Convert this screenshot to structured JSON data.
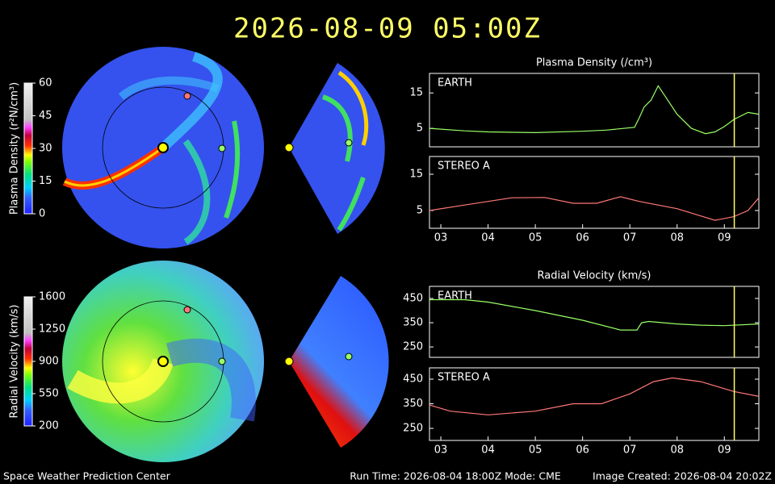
{
  "header": {
    "title": "2026-08-09  05:00Z"
  },
  "footer": {
    "left": "Space Weather Prediction Center",
    "center": "Run Time: 2026-08-04 18:00Z  Mode: CME",
    "right": "Image Created: 2026-08-04 20:02Z"
  },
  "chart_data": [
    {
      "type": "line",
      "title": "Plasma Density (/cm³)",
      "x": [
        2.76,
        3.5,
        4,
        5,
        6,
        6.5,
        7.1,
        7.2,
        7.3,
        7.45,
        7.6,
        7.75,
        8,
        8.3,
        8.6,
        8.8,
        9.0,
        9.2,
        9.5,
        9.73
      ],
      "series": [
        {
          "name": "EARTH",
          "color": "#99ff66",
          "values": [
            5.0,
            4.3,
            4.0,
            3.8,
            4.2,
            4.5,
            5.3,
            8,
            11,
            13,
            17,
            14,
            9,
            5,
            3.5,
            4,
            5.5,
            7.5,
            9.5,
            9
          ]
        }
      ],
      "xlim": [
        2.76,
        9.73
      ],
      "ylim": [
        -0.2,
        20.5
      ],
      "yticks": [
        5,
        15
      ],
      "marker_x": 9.21,
      "marker_color": "#ffff66"
    },
    {
      "type": "line",
      "x": [
        2.76,
        3.5,
        4.5,
        5.2,
        5.8,
        6.3,
        6.8,
        7.2,
        8,
        8.5,
        8.8,
        9.2,
        9.5,
        9.73
      ],
      "series": [
        {
          "name": "STEREO A",
          "color": "#ff7777",
          "values": [
            5,
            6.5,
            8.5,
            8.6,
            7,
            7,
            8.8,
            7.5,
            5.5,
            3.5,
            2.3,
            3.3,
            5,
            8.5
          ]
        }
      ],
      "xlim": [
        2.76,
        9.73
      ],
      "ylim": [
        0.1,
        19.9
      ],
      "yticks": [
        5,
        15
      ],
      "xticks": [
        {
          "value": 3,
          "label": "03"
        },
        {
          "value": 4,
          "label": "04"
        },
        {
          "value": 5,
          "label": "05"
        },
        {
          "value": 6,
          "label": "06"
        },
        {
          "value": 7,
          "label": "07"
        },
        {
          "value": 8,
          "label": "08"
        },
        {
          "value": 9,
          "label": "09"
        }
      ],
      "marker_x": 9.21,
      "marker_color": "#ffff66"
    },
    {
      "type": "line",
      "title": "Radial Velocity (km/s)",
      "x": [
        2.76,
        3.5,
        4,
        5,
        6,
        6.8,
        7.15,
        7.25,
        7.4,
        8,
        8.5,
        9,
        9.73
      ],
      "series": [
        {
          "name": "EARTH",
          "color": "#99ff66",
          "values": [
            445,
            445,
            435,
            400,
            360,
            320,
            320,
            350,
            355,
            345,
            340,
            338,
            345
          ]
        }
      ],
      "xlim": [
        2.76,
        9.73
      ],
      "ylim": [
        207,
        500
      ],
      "yticks": [
        250,
        350,
        450
      ],
      "marker_x": 9.21,
      "marker_color": "#ffff66"
    },
    {
      "type": "line",
      "x": [
        2.76,
        3.2,
        4,
        5,
        5.8,
        6.4,
        7,
        7.5,
        7.9,
        8.5,
        9.2,
        9.73
      ],
      "series": [
        {
          "name": "STEREO A",
          "color": "#ff7777",
          "values": [
            345,
            320,
            305,
            320,
            350,
            350,
            390,
            440,
            455,
            440,
            400,
            380
          ]
        }
      ],
      "xlim": [
        2.76,
        9.73
      ],
      "ylim": [
        201,
        496
      ],
      "yticks": [
        250,
        350,
        450
      ],
      "xticks": [
        {
          "value": 3,
          "label": "03"
        },
        {
          "value": 4,
          "label": "04"
        },
        {
          "value": 5,
          "label": "05"
        },
        {
          "value": 6,
          "label": "06"
        },
        {
          "value": 7,
          "label": "07"
        },
        {
          "value": 8,
          "label": "08"
        },
        {
          "value": 9,
          "label": "09"
        }
      ],
      "marker_x": 9.21,
      "marker_color": "#ffff66"
    },
    {
      "type": "colorbar",
      "ylabel": "Plasma Density (r²N/cm³)",
      "ylim": [
        0,
        60
      ],
      "yticks": [
        0,
        15,
        30,
        45,
        60
      ]
    },
    {
      "type": "colorbar",
      "ylabel": "Radial Velocity (km/s)",
      "ylim": [
        200,
        1600
      ],
      "yticks": [
        200,
        550,
        900,
        1250,
        1600
      ]
    }
  ]
}
